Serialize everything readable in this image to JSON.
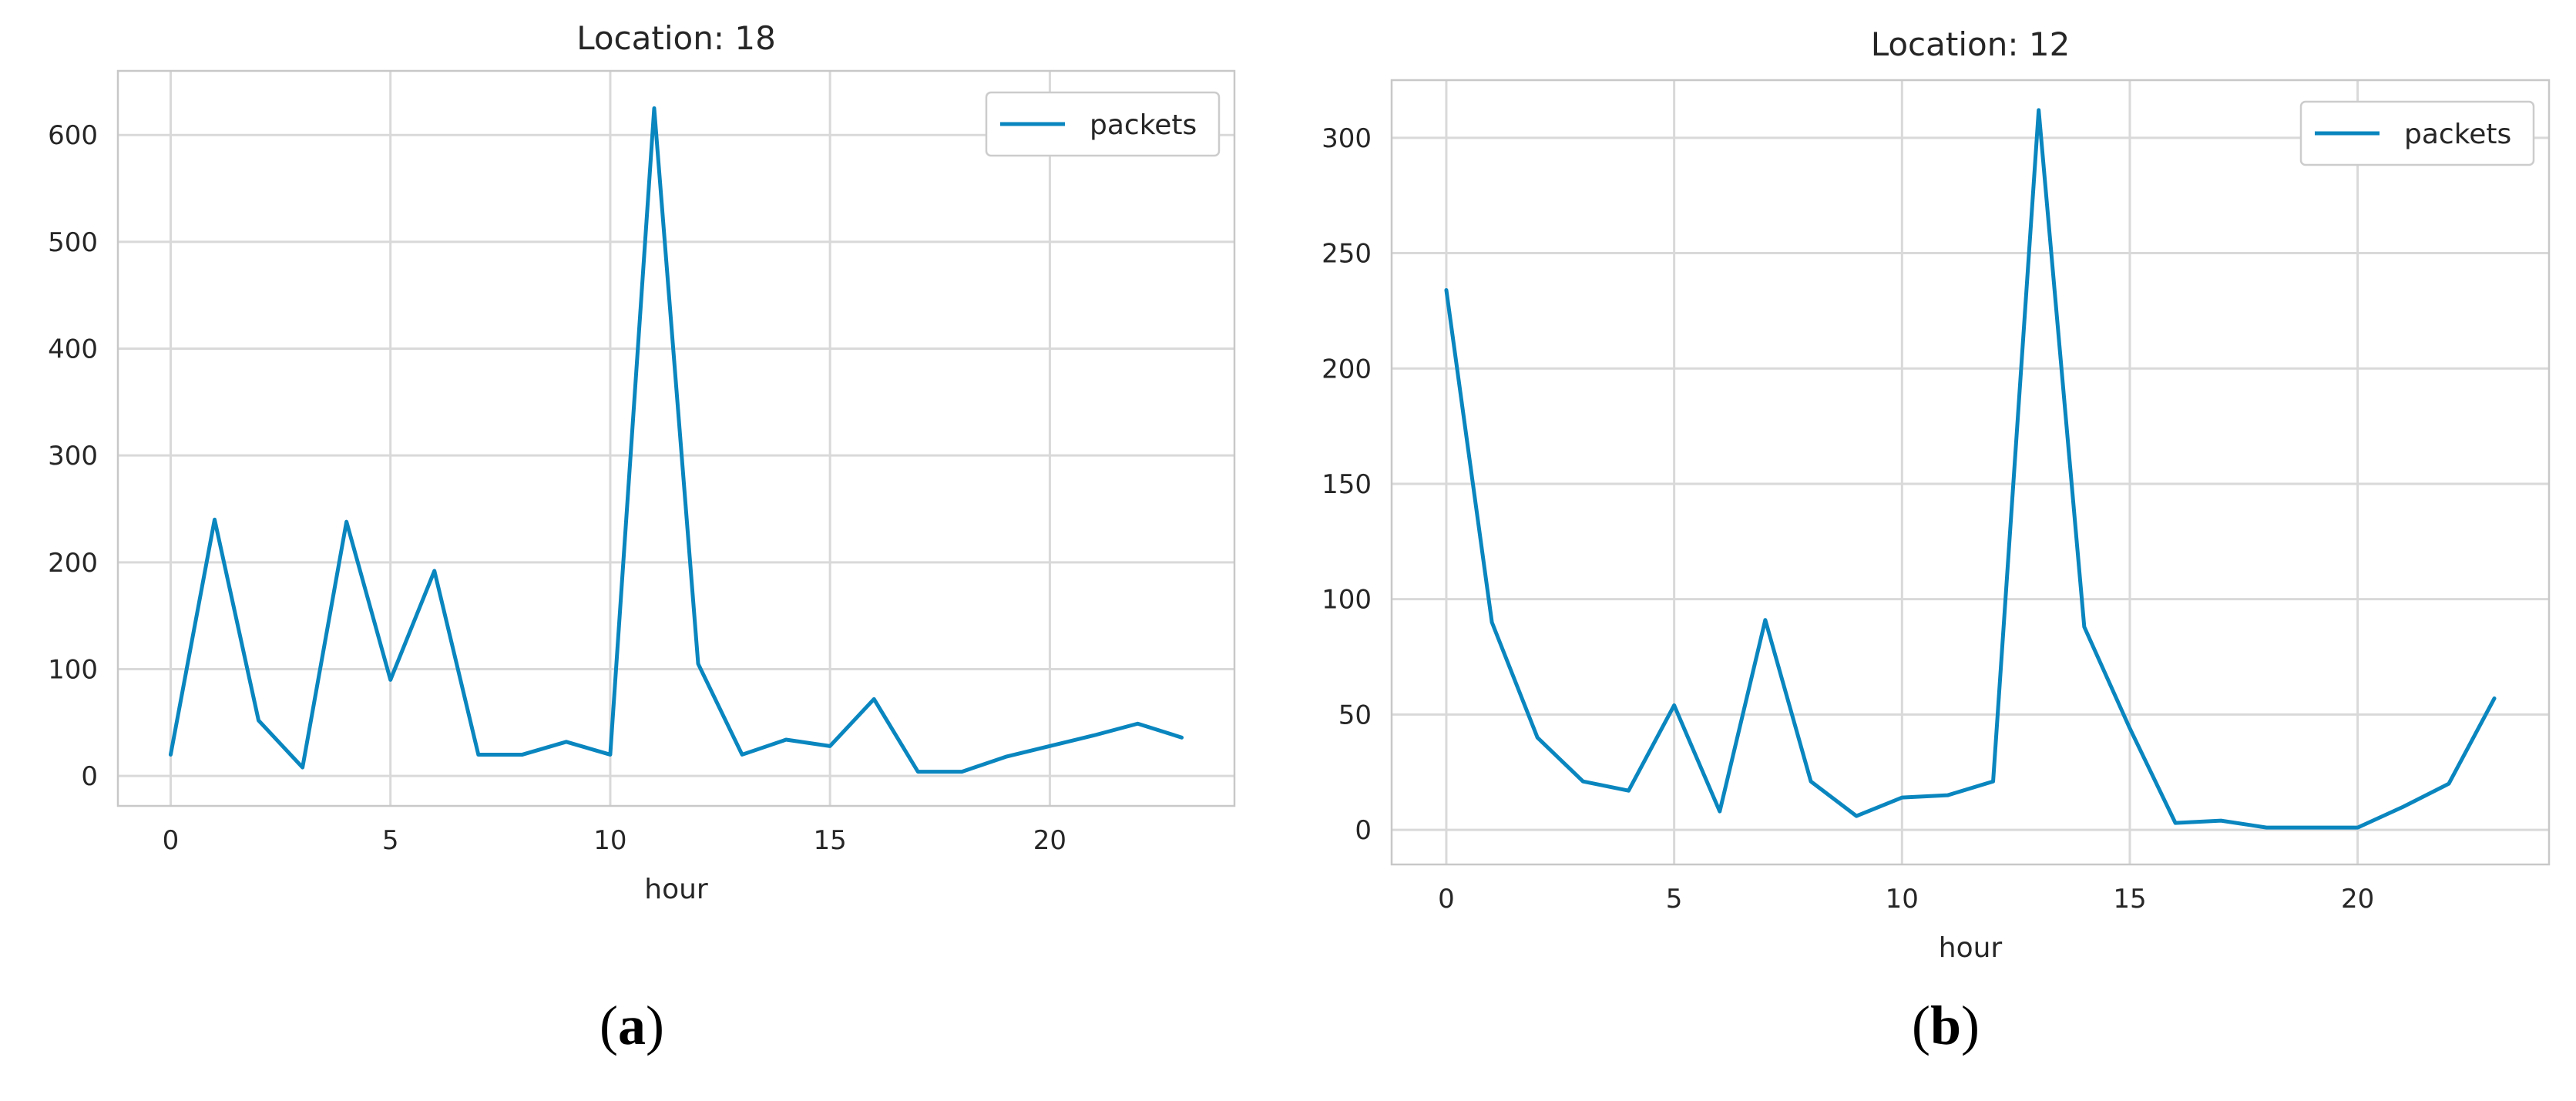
{
  "colors": {
    "series": "#0a86bf",
    "grid": "#d9d9d9",
    "text": "#262626"
  },
  "chart_data": [
    {
      "type": "line",
      "panel_label": "a",
      "title": "Location: 18",
      "xlabel": "hour",
      "ylabel": "",
      "xlim": [
        -1.2,
        24.2
      ],
      "ylim": [
        -28,
        660
      ],
      "xticks": [
        0,
        5,
        10,
        15,
        20
      ],
      "yticks": [
        0,
        100,
        200,
        300,
        400,
        500,
        600
      ],
      "grid": true,
      "legend_position": "top-right",
      "series": [
        {
          "name": "packets",
          "x": [
            0,
            1,
            2,
            3,
            4,
            5,
            6,
            7,
            8,
            9,
            10,
            11,
            12,
            13,
            14,
            15,
            16,
            17,
            18,
            19,
            20,
            21,
            22,
            23
          ],
          "y": [
            20,
            240,
            52,
            8,
            238,
            90,
            192,
            20,
            20,
            32,
            20,
            625,
            105,
            20,
            34,
            28,
            72,
            4,
            4,
            18,
            28,
            38,
            49,
            36
          ]
        }
      ]
    },
    {
      "type": "line",
      "panel_label": "b",
      "title": "Location: 12",
      "xlabel": "hour",
      "ylabel": "",
      "xlim": [
        -1.2,
        24.2
      ],
      "ylim": [
        -15,
        325
      ],
      "xticks": [
        0,
        5,
        10,
        15,
        20
      ],
      "yticks": [
        0,
        50,
        100,
        150,
        200,
        250,
        300
      ],
      "grid": true,
      "legend_position": "top-right",
      "series": [
        {
          "name": "packets",
          "x": [
            0,
            1,
            2,
            3,
            4,
            5,
            6,
            7,
            8,
            9,
            10,
            11,
            12,
            13,
            14,
            15,
            16,
            17,
            18,
            19,
            20,
            21,
            22,
            23
          ],
          "y": [
            234,
            90,
            40,
            21,
            17,
            54,
            8,
            91,
            21,
            6,
            14,
            15,
            21,
            312,
            88,
            44,
            3,
            4,
            1,
            1,
            1,
            10,
            20,
            57
          ]
        }
      ]
    }
  ]
}
